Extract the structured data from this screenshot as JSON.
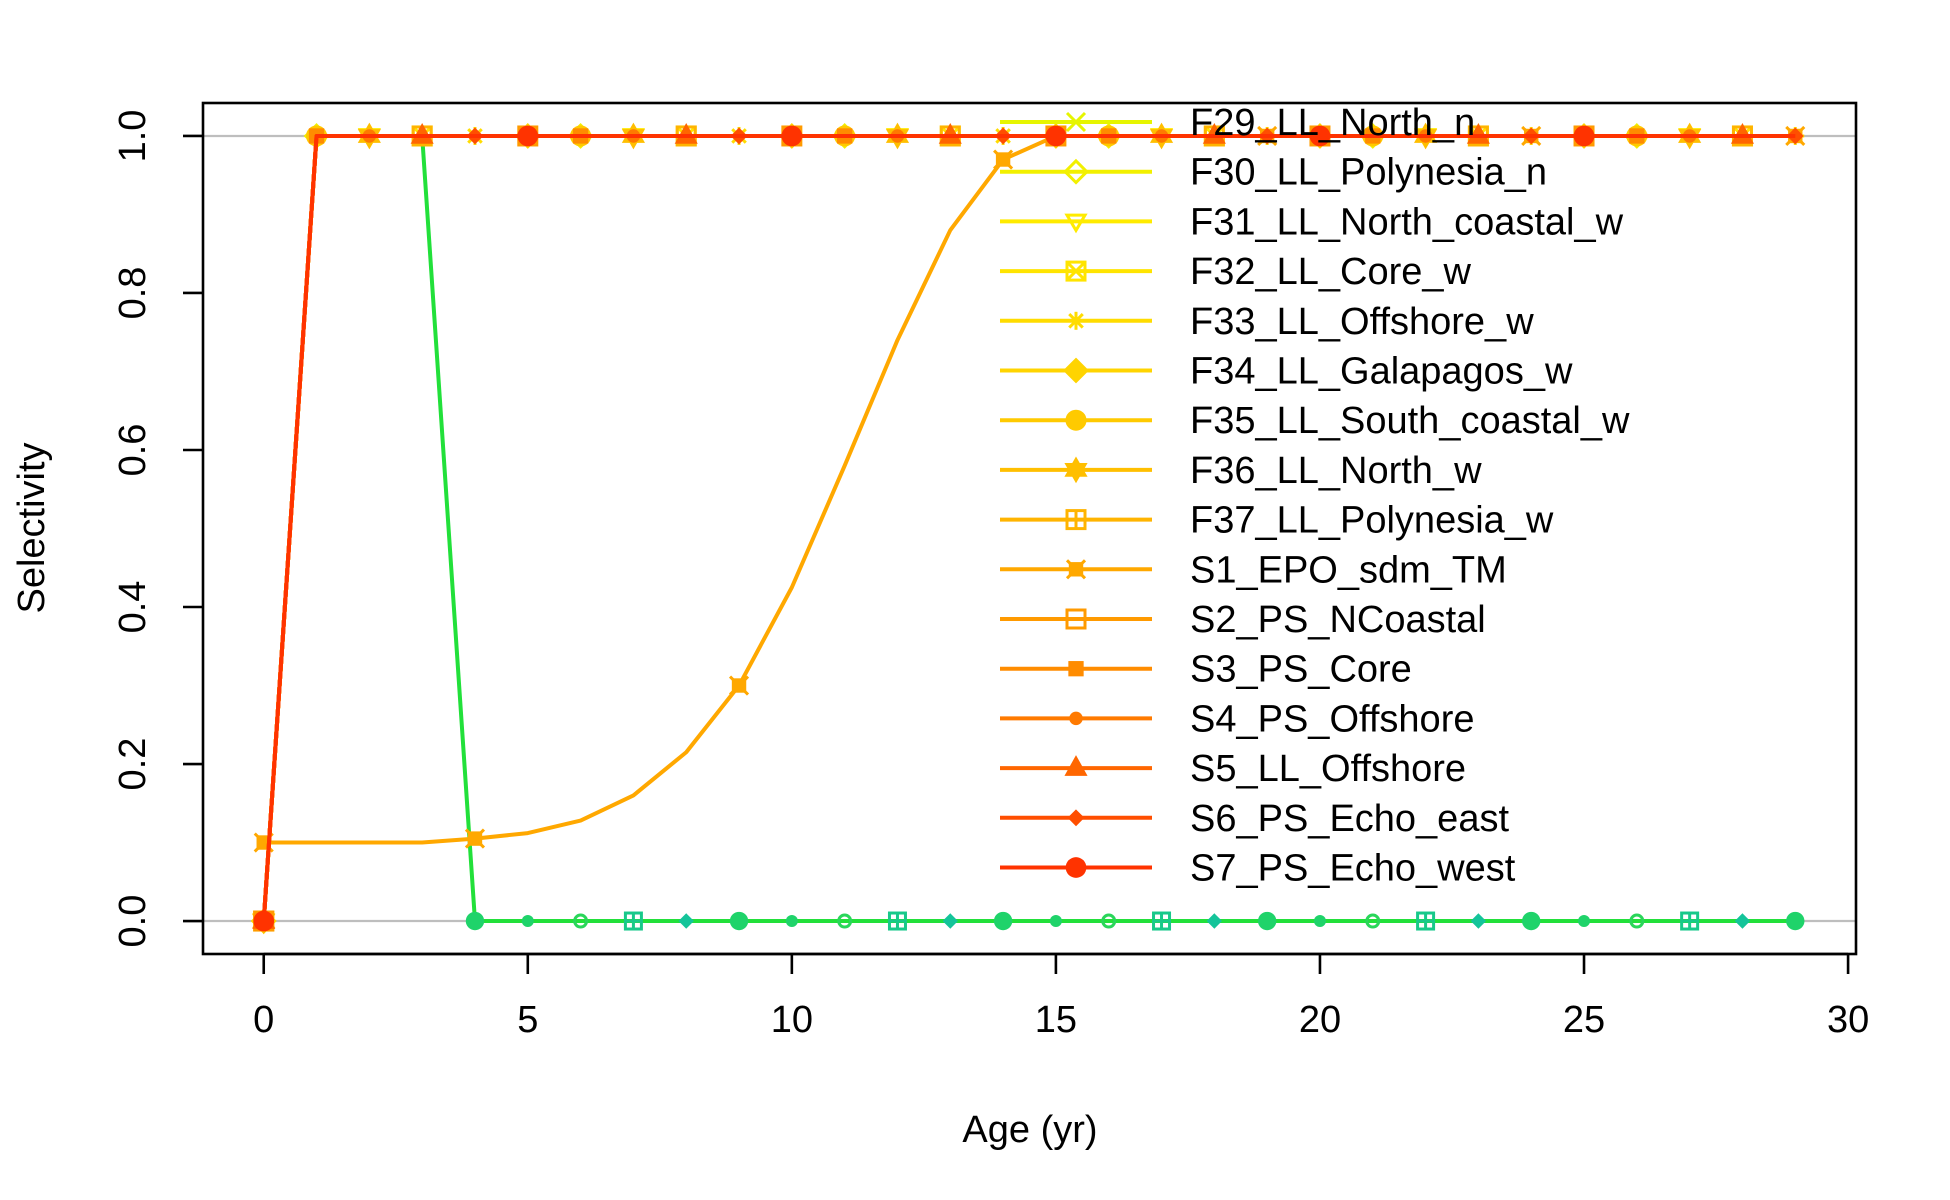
{
  "chart_data": {
    "type": "line",
    "title": "",
    "xlabel": "Age (yr)",
    "ylabel": "Selectivity",
    "xlim": [
      -1.15,
      30.15
    ],
    "ylim": [
      -0.042,
      1.042
    ],
    "xticks": [
      0,
      5,
      10,
      15,
      20,
      25,
      30
    ],
    "yticks": [
      0.0,
      0.2,
      0.4,
      0.6,
      0.8,
      1.0
    ],
    "xtick_labels": [
      "0",
      "5",
      "10",
      "15",
      "20",
      "25",
      "30"
    ],
    "ytick_labels": [
      "0.0",
      "0.2",
      "0.4",
      "0.6",
      "0.8",
      "1.0"
    ],
    "reference_lines": [
      0,
      1
    ],
    "reference_line_color": "#bebebe",
    "legend_position": "top-right",
    "x": [
      0,
      1,
      2,
      3,
      4,
      5,
      6,
      7,
      8,
      9,
      10,
      11,
      12,
      13,
      14,
      15,
      16,
      17,
      18,
      19,
      20,
      21,
      22,
      23,
      24,
      25,
      26,
      27,
      28,
      29
    ],
    "series": [
      {
        "name": "F29_LL_North_n",
        "color": "#e6f500",
        "marker": "x",
        "values": [
          0,
          1,
          1,
          1,
          1,
          1,
          1,
          1,
          1,
          1,
          1,
          1,
          1,
          1,
          1,
          1,
          1,
          1,
          1,
          1,
          1,
          1,
          1,
          1,
          1,
          1,
          1,
          1,
          1,
          1
        ]
      },
      {
        "name": "F30_LL_Polynesia_n",
        "color": "#f2f000",
        "marker": "diamond-open",
        "values": [
          0,
          1,
          1,
          1,
          1,
          1,
          1,
          1,
          1,
          1,
          1,
          1,
          1,
          1,
          1,
          1,
          1,
          1,
          1,
          1,
          1,
          1,
          1,
          1,
          1,
          1,
          1,
          1,
          1,
          1
        ]
      },
      {
        "name": "F31_LL_North_coastal_w",
        "color": "#ffeb00",
        "marker": "triangle-down-open",
        "values": [
          0,
          1,
          1,
          1,
          1,
          1,
          1,
          1,
          1,
          1,
          1,
          1,
          1,
          1,
          1,
          1,
          1,
          1,
          1,
          1,
          1,
          1,
          1,
          1,
          1,
          1,
          1,
          1,
          1,
          1
        ]
      },
      {
        "name": "F32_LL_Core_w",
        "color": "#ffe400",
        "marker": "square-x",
        "values": [
          0,
          1,
          1,
          1,
          1,
          1,
          1,
          1,
          1,
          1,
          1,
          1,
          1,
          1,
          1,
          1,
          1,
          1,
          1,
          1,
          1,
          1,
          1,
          1,
          1,
          1,
          1,
          1,
          1,
          1
        ]
      },
      {
        "name": "F33_LL_Offshore_w",
        "color": "#ffdc00",
        "marker": "asterisk",
        "values": [
          0,
          1,
          1,
          1,
          1,
          1,
          1,
          1,
          1,
          1,
          1,
          1,
          1,
          1,
          1,
          1,
          1,
          1,
          1,
          1,
          1,
          1,
          1,
          1,
          1,
          1,
          1,
          1,
          1,
          1
        ]
      },
      {
        "name": "F34_LL_Galapagos_w",
        "color": "#ffd400",
        "marker": "diamond-plus",
        "values": [
          0,
          1,
          1,
          1,
          1,
          1,
          1,
          1,
          1,
          1,
          1,
          1,
          1,
          1,
          1,
          1,
          1,
          1,
          1,
          1,
          1,
          1,
          1,
          1,
          1,
          1,
          1,
          1,
          1,
          1
        ]
      },
      {
        "name": "F35_LL_South_coastal_w",
        "color": "#ffca00",
        "marker": "circle-plus",
        "values": [
          0,
          1,
          1,
          1,
          1,
          1,
          1,
          1,
          1,
          1,
          1,
          1,
          1,
          1,
          1,
          1,
          1,
          1,
          1,
          1,
          1,
          1,
          1,
          1,
          1,
          1,
          1,
          1,
          1,
          1
        ]
      },
      {
        "name": "F36_LL_North_w",
        "color": "#ffbf00",
        "marker": "star-of-david",
        "values": [
          0,
          1,
          1,
          1,
          1,
          1,
          1,
          1,
          1,
          1,
          1,
          1,
          1,
          1,
          1,
          1,
          1,
          1,
          1,
          1,
          1,
          1,
          1,
          1,
          1,
          1,
          1,
          1,
          1,
          1
        ]
      },
      {
        "name": "F37_LL_Polynesia_w",
        "color": "#ffb400",
        "marker": "square-plus",
        "values": [
          0,
          1,
          1,
          1,
          1,
          1,
          1,
          1,
          1,
          1,
          1,
          1,
          1,
          1,
          1,
          1,
          1,
          1,
          1,
          1,
          1,
          1,
          1,
          1,
          1,
          1,
          1,
          1,
          1,
          1
        ]
      },
      {
        "name": "S1_EPO_sdm_TM",
        "color": "#ffa800",
        "marker": "square-x-filled",
        "values": [
          0.1,
          0.1,
          0.1,
          0.1,
          0.105,
          0.112,
          0.128,
          0.16,
          0.215,
          0.3,
          0.425,
          0.58,
          0.74,
          0.88,
          0.97,
          1.0,
          1.0,
          1.0,
          1.0,
          1.0,
          1.0,
          1.0,
          1.0,
          1.0,
          1.0,
          1.0,
          1.0,
          1.0,
          1.0,
          1.0
        ]
      },
      {
        "name": "S2_PS_NCoastal",
        "color": "#ff9a00",
        "marker": "square-open-plus",
        "values": [
          0,
          1,
          1,
          1,
          1,
          1,
          1,
          1,
          1,
          1,
          1,
          1,
          1,
          1,
          1,
          1,
          1,
          1,
          1,
          1,
          1,
          1,
          1,
          1,
          1,
          1,
          1,
          1,
          1,
          1
        ]
      },
      {
        "name": "S3_PS_Core",
        "color": "#ff8c00",
        "marker": "square",
        "values": [
          0,
          1,
          1,
          1,
          1,
          1,
          1,
          1,
          1,
          1,
          1,
          1,
          1,
          1,
          1,
          1,
          1,
          1,
          1,
          1,
          1,
          1,
          1,
          1,
          1,
          1,
          1,
          1,
          1,
          1
        ]
      },
      {
        "name": "S4_PS_Offshore",
        "color": "#ff7a00",
        "marker": "circle",
        "values": [
          0,
          1,
          1,
          1,
          1,
          1,
          1,
          1,
          1,
          1,
          1,
          1,
          1,
          1,
          1,
          1,
          1,
          1,
          1,
          1,
          1,
          1,
          1,
          1,
          1,
          1,
          1,
          1,
          1,
          1
        ]
      },
      {
        "name": "S5_LL_Offshore",
        "color": "#ff6600",
        "marker": "triangle",
        "values": [
          0,
          1,
          1,
          1,
          1,
          1,
          1,
          1,
          1,
          1,
          1,
          1,
          1,
          1,
          1,
          1,
          1,
          1,
          1,
          1,
          1,
          1,
          1,
          1,
          1,
          1,
          1,
          1,
          1,
          1
        ]
      },
      {
        "name": "S6_PS_Echo_east",
        "color": "#ff4e00",
        "marker": "diamond-small",
        "values": [
          0,
          1,
          1,
          1,
          1,
          1,
          1,
          1,
          1,
          1,
          1,
          1,
          1,
          1,
          1,
          1,
          1,
          1,
          1,
          1,
          1,
          1,
          1,
          1,
          1,
          1,
          1,
          1,
          1,
          1
        ]
      },
      {
        "name": "S7_PS_Echo_west",
        "color": "#ff3300",
        "marker": "circle-large",
        "values": [
          0,
          1,
          1,
          1,
          1,
          1,
          1,
          1,
          1,
          1,
          1,
          1,
          1,
          1,
          1,
          1,
          1,
          1,
          1,
          1,
          1,
          1,
          1,
          1,
          1,
          1,
          1,
          1,
          1,
          1
        ]
      }
    ],
    "hidden_series": [
      {
        "color": "#22e03a",
        "marker": "circle-open",
        "values": [
          0,
          1,
          1,
          1,
          0,
          0,
          0,
          0,
          0,
          0,
          0,
          0,
          0,
          0,
          0,
          0,
          0,
          0,
          0,
          0,
          0,
          0,
          0,
          0,
          0,
          0,
          0,
          0,
          0,
          0
        ]
      }
    ]
  }
}
